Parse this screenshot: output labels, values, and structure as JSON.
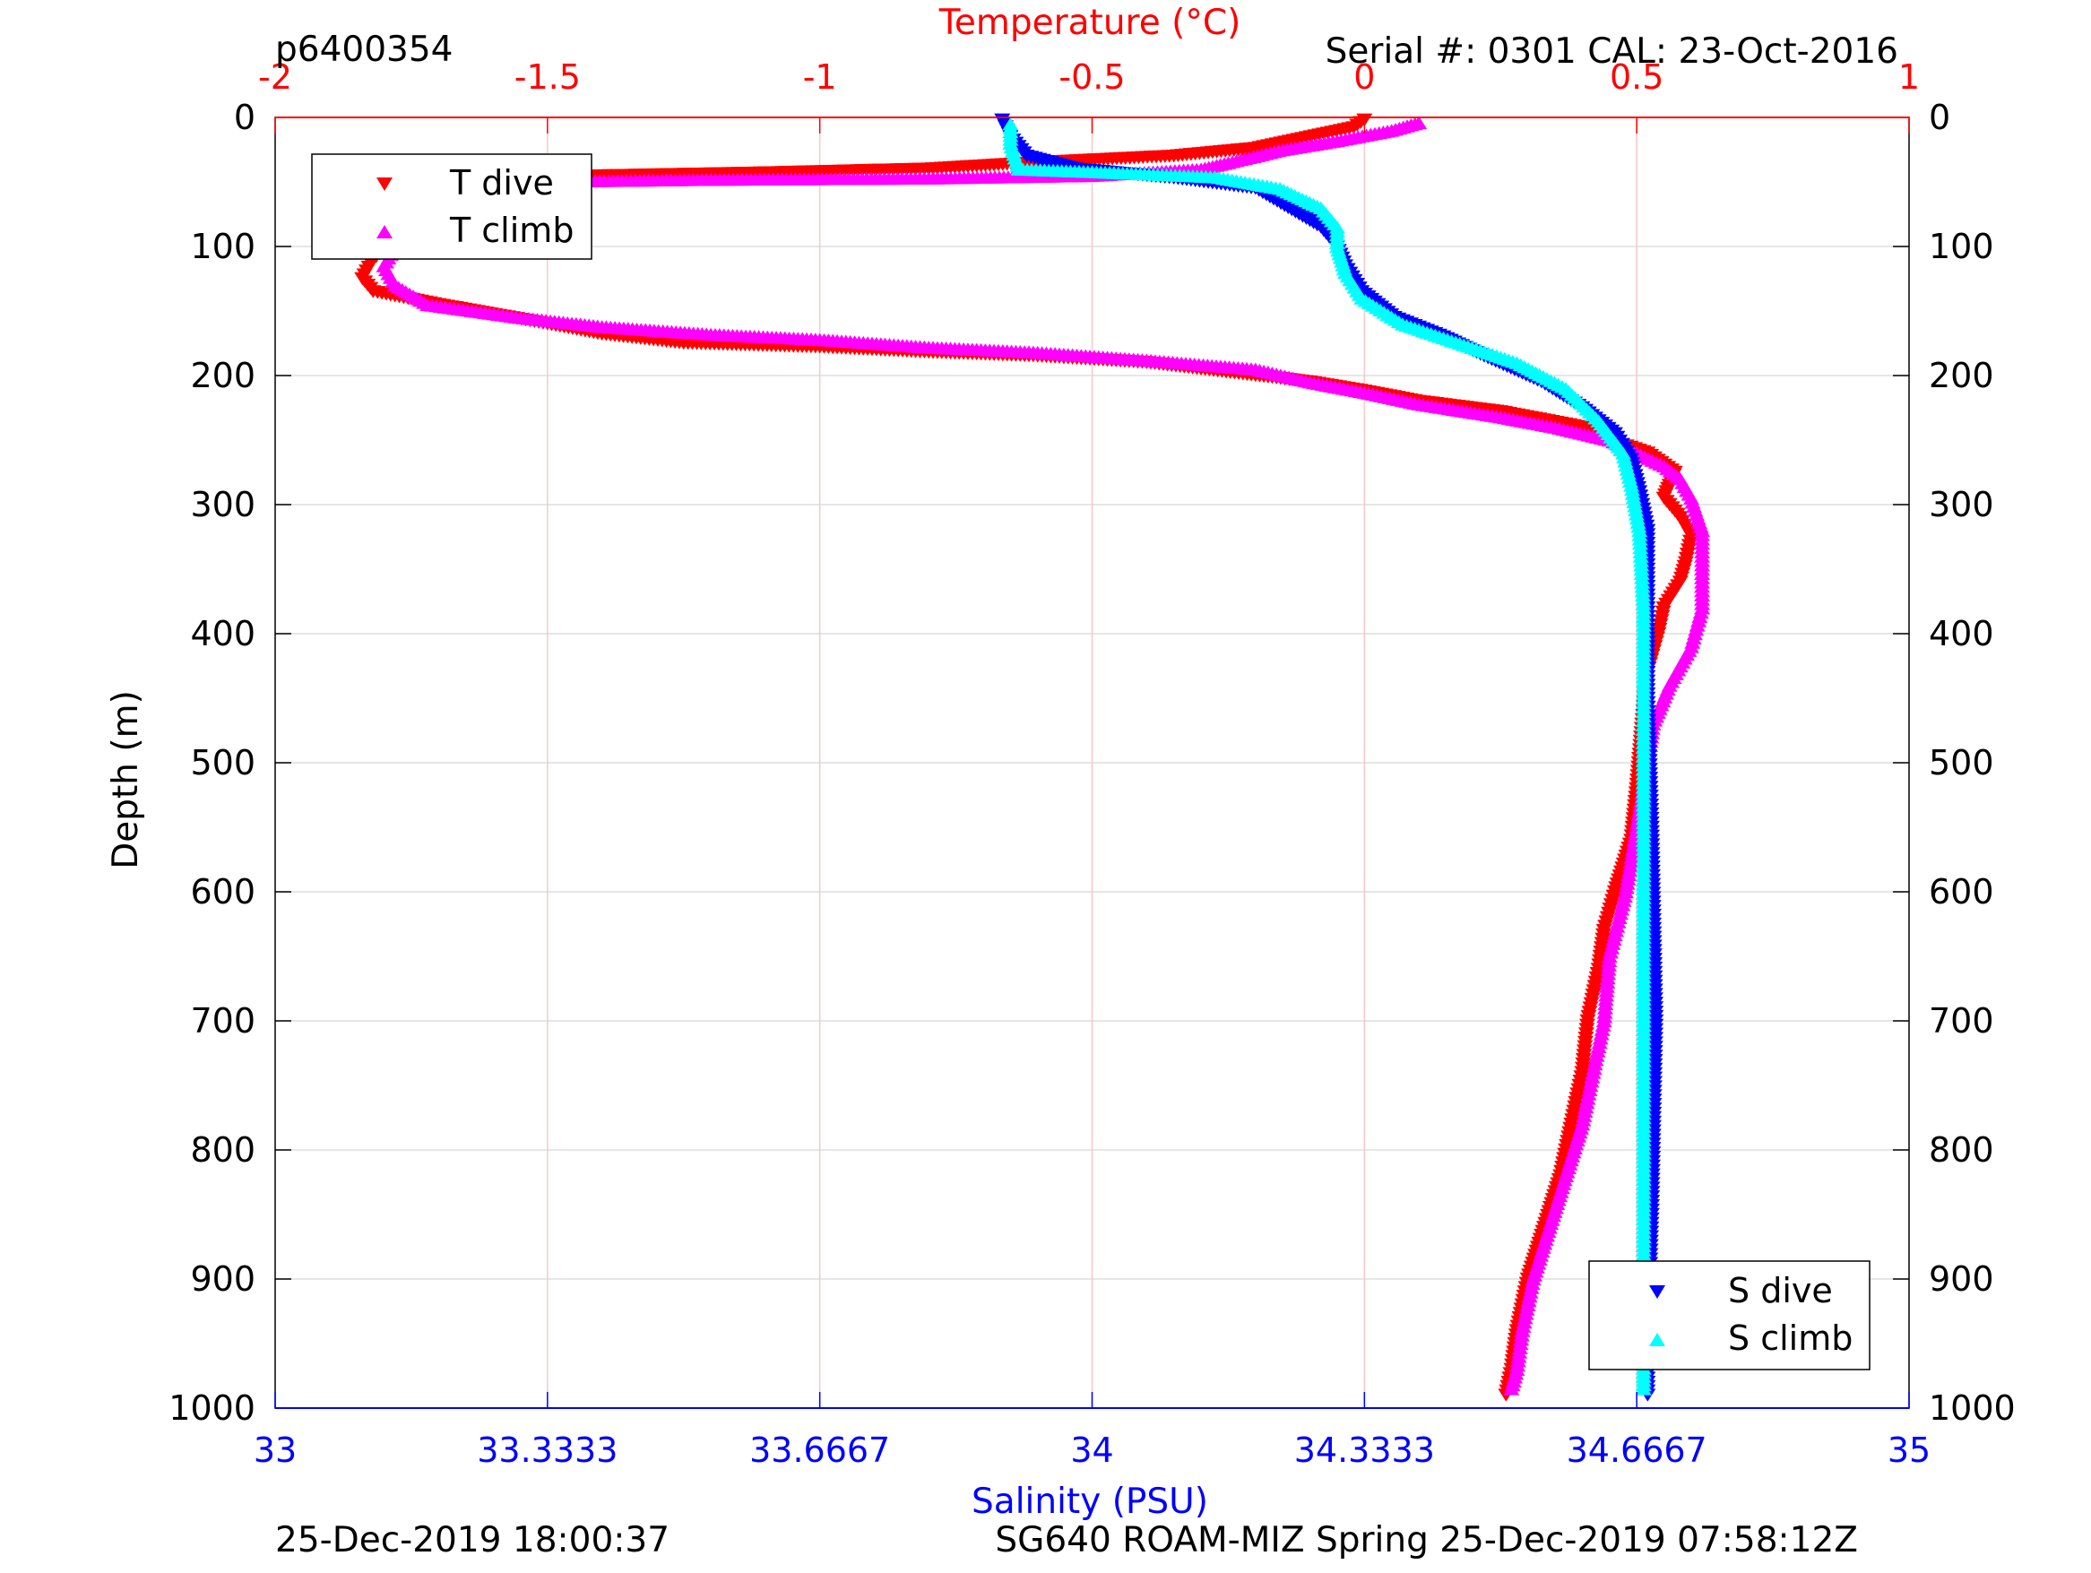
{
  "texts": {
    "left_top": "p6400354",
    "right_top": "Serial #: 0301  CAL: 23-Oct-2016",
    "bottom_left": "25-Dec-2019 18:00:37",
    "bottom_right": "SG640 ROAM-MIZ Spring 25-Dec-2019 07:58:12Z"
  },
  "colors": {
    "t_dive": "#ff0000",
    "t_climb": "#ff00ff",
    "s_dive": "#0000ff",
    "s_climb": "#00ffff",
    "temperature_axis": "#ff0000",
    "salinity_axis": "#0000ff",
    "depth_axis": "#000000"
  },
  "chart_data": {
    "type": "scatter",
    "grid": true,
    "y_axis": {
      "label": "Depth (m)",
      "range": [
        0,
        1000
      ],
      "reversed": true,
      "ticks": [
        "0",
        "100",
        "200",
        "300",
        "400",
        "500",
        "600",
        "700",
        "800",
        "900",
        "1000"
      ]
    },
    "temperature_axis": {
      "label": "Temperature (°C)",
      "position": "top",
      "range": [
        -2,
        1
      ],
      "ticks": [
        "-2",
        "-1.5",
        "-1",
        "-0.5",
        "0",
        "0.5",
        "1"
      ]
    },
    "salinity_axis": {
      "label": "Salinity (PSU)",
      "position": "bottom",
      "range": [
        33,
        35
      ],
      "ticks": [
        "33",
        "33.3333",
        "33.6667",
        "34",
        "34.3333",
        "34.6667",
        "35"
      ]
    },
    "legends": [
      {
        "placement": "top-left",
        "entries": [
          "T dive",
          "T climb"
        ]
      },
      {
        "placement": "bottom-right",
        "entries": [
          "S dive",
          "S climb"
        ]
      }
    ],
    "series": [
      {
        "name": "T dive",
        "axis": "temperature",
        "marker": "triangle-down",
        "points": [
          [
            0.0,
            2
          ],
          [
            -0.02,
            8
          ],
          [
            -0.2,
            24
          ],
          [
            -0.35,
            30
          ],
          [
            -0.6,
            35
          ],
          [
            -0.8,
            40
          ],
          [
            -1.1,
            43
          ],
          [
            -1.5,
            46
          ],
          [
            -1.65,
            55
          ],
          [
            -1.72,
            75
          ],
          [
            -1.78,
            95
          ],
          [
            -1.82,
            110
          ],
          [
            -1.84,
            125
          ],
          [
            -1.82,
            135
          ],
          [
            -1.7,
            145
          ],
          [
            -1.5,
            160
          ],
          [
            -1.4,
            168
          ],
          [
            -1.25,
            175
          ],
          [
            -1.0,
            178
          ],
          [
            -0.8,
            182
          ],
          [
            -0.6,
            185
          ],
          [
            -0.4,
            190
          ],
          [
            -0.3,
            195
          ],
          [
            -0.2,
            200
          ],
          [
            -0.1,
            205
          ],
          [
            0.0,
            212
          ],
          [
            0.1,
            220
          ],
          [
            0.25,
            228
          ],
          [
            0.4,
            240
          ],
          [
            0.45,
            250
          ],
          [
            0.52,
            260
          ],
          [
            0.57,
            275
          ],
          [
            0.56,
            285
          ],
          [
            0.55,
            295
          ],
          [
            0.58,
            310
          ],
          [
            0.6,
            325
          ],
          [
            0.59,
            345
          ],
          [
            0.58,
            360
          ],
          [
            0.55,
            380
          ],
          [
            0.54,
            400
          ],
          [
            0.52,
            430
          ],
          [
            0.51,
            470
          ],
          [
            0.5,
            520
          ],
          [
            0.49,
            560
          ],
          [
            0.46,
            600
          ],
          [
            0.44,
            630
          ],
          [
            0.43,
            660
          ],
          [
            0.41,
            700
          ],
          [
            0.4,
            740
          ],
          [
            0.38,
            780
          ],
          [
            0.36,
            820
          ],
          [
            0.33,
            860
          ],
          [
            0.3,
            900
          ],
          [
            0.28,
            940
          ],
          [
            0.27,
            970
          ],
          [
            0.26,
            990
          ]
        ]
      },
      {
        "name": "T climb",
        "axis": "temperature",
        "marker": "triangle-up",
        "points": [
          [
            0.1,
            4
          ],
          [
            0.05,
            10
          ],
          [
            -0.05,
            18
          ],
          [
            -0.15,
            25
          ],
          [
            -0.25,
            35
          ],
          [
            -0.3,
            40
          ],
          [
            -0.5,
            45
          ],
          [
            -0.8,
            47
          ],
          [
            -1.2,
            48
          ],
          [
            -1.6,
            50
          ],
          [
            -1.72,
            60
          ],
          [
            -1.75,
            80
          ],
          [
            -1.78,
            100
          ],
          [
            -1.8,
            115
          ],
          [
            -1.78,
            130
          ],
          [
            -1.72,
            145
          ],
          [
            -1.55,
            155
          ],
          [
            -1.4,
            162
          ],
          [
            -1.2,
            168
          ],
          [
            -1.0,
            172
          ],
          [
            -0.8,
            178
          ],
          [
            -0.6,
            182
          ],
          [
            -0.4,
            188
          ],
          [
            -0.2,
            195
          ],
          [
            -0.1,
            205
          ],
          [
            0.0,
            213
          ],
          [
            0.1,
            222
          ],
          [
            0.25,
            232
          ],
          [
            0.35,
            240
          ],
          [
            0.45,
            250
          ],
          [
            0.5,
            260
          ],
          [
            0.55,
            270
          ],
          [
            0.58,
            280
          ],
          [
            0.6,
            295
          ],
          [
            0.62,
            320
          ],
          [
            0.62,
            350
          ],
          [
            0.62,
            380
          ],
          [
            0.6,
            410
          ],
          [
            0.56,
            440
          ],
          [
            0.53,
            470
          ],
          [
            0.52,
            500
          ],
          [
            0.5,
            550
          ],
          [
            0.48,
            600
          ],
          [
            0.45,
            650
          ],
          [
            0.44,
            700
          ],
          [
            0.42,
            740
          ],
          [
            0.4,
            780
          ],
          [
            0.37,
            820
          ],
          [
            0.34,
            860
          ],
          [
            0.31,
            900
          ],
          [
            0.29,
            940
          ],
          [
            0.28,
            970
          ],
          [
            0.27,
            985
          ]
        ]
      },
      {
        "name": "S dive",
        "axis": "salinity",
        "marker": "triangle-down",
        "points": [
          [
            33.89,
            2
          ],
          [
            33.9,
            15
          ],
          [
            33.92,
            30
          ],
          [
            33.98,
            40
          ],
          [
            34.1,
            47
          ],
          [
            34.2,
            55
          ],
          [
            34.24,
            70
          ],
          [
            34.28,
            85
          ],
          [
            34.3,
            100
          ],
          [
            34.31,
            115
          ],
          [
            34.33,
            135
          ],
          [
            34.37,
            155
          ],
          [
            34.43,
            170
          ],
          [
            34.48,
            185
          ],
          [
            34.55,
            205
          ],
          [
            34.6,
            225
          ],
          [
            34.64,
            245
          ],
          [
            34.66,
            265
          ],
          [
            34.67,
            290
          ],
          [
            34.68,
            320
          ],
          [
            34.68,
            380
          ],
          [
            34.68,
            450
          ],
          [
            34.685,
            550
          ],
          [
            34.69,
            700
          ],
          [
            34.685,
            850
          ],
          [
            34.68,
            950
          ],
          [
            34.68,
            990
          ]
        ]
      },
      {
        "name": "S climb",
        "axis": "salinity",
        "marker": "triangle-up",
        "points": [
          [
            33.9,
            5
          ],
          [
            33.9,
            20
          ],
          [
            33.91,
            40
          ],
          [
            34.0,
            42
          ],
          [
            34.15,
            46
          ],
          [
            34.23,
            55
          ],
          [
            34.28,
            70
          ],
          [
            34.3,
            85
          ],
          [
            34.3,
            100
          ],
          [
            34.31,
            120
          ],
          [
            34.33,
            140
          ],
          [
            34.38,
            160
          ],
          [
            34.45,
            175
          ],
          [
            34.52,
            190
          ],
          [
            34.58,
            210
          ],
          [
            34.62,
            235
          ],
          [
            34.65,
            260
          ],
          [
            34.66,
            285
          ],
          [
            34.67,
            320
          ],
          [
            34.675,
            380
          ],
          [
            34.675,
            450
          ],
          [
            34.675,
            550
          ],
          [
            34.675,
            700
          ],
          [
            34.675,
            850
          ],
          [
            34.675,
            950
          ],
          [
            34.675,
            985
          ]
        ]
      }
    ]
  }
}
